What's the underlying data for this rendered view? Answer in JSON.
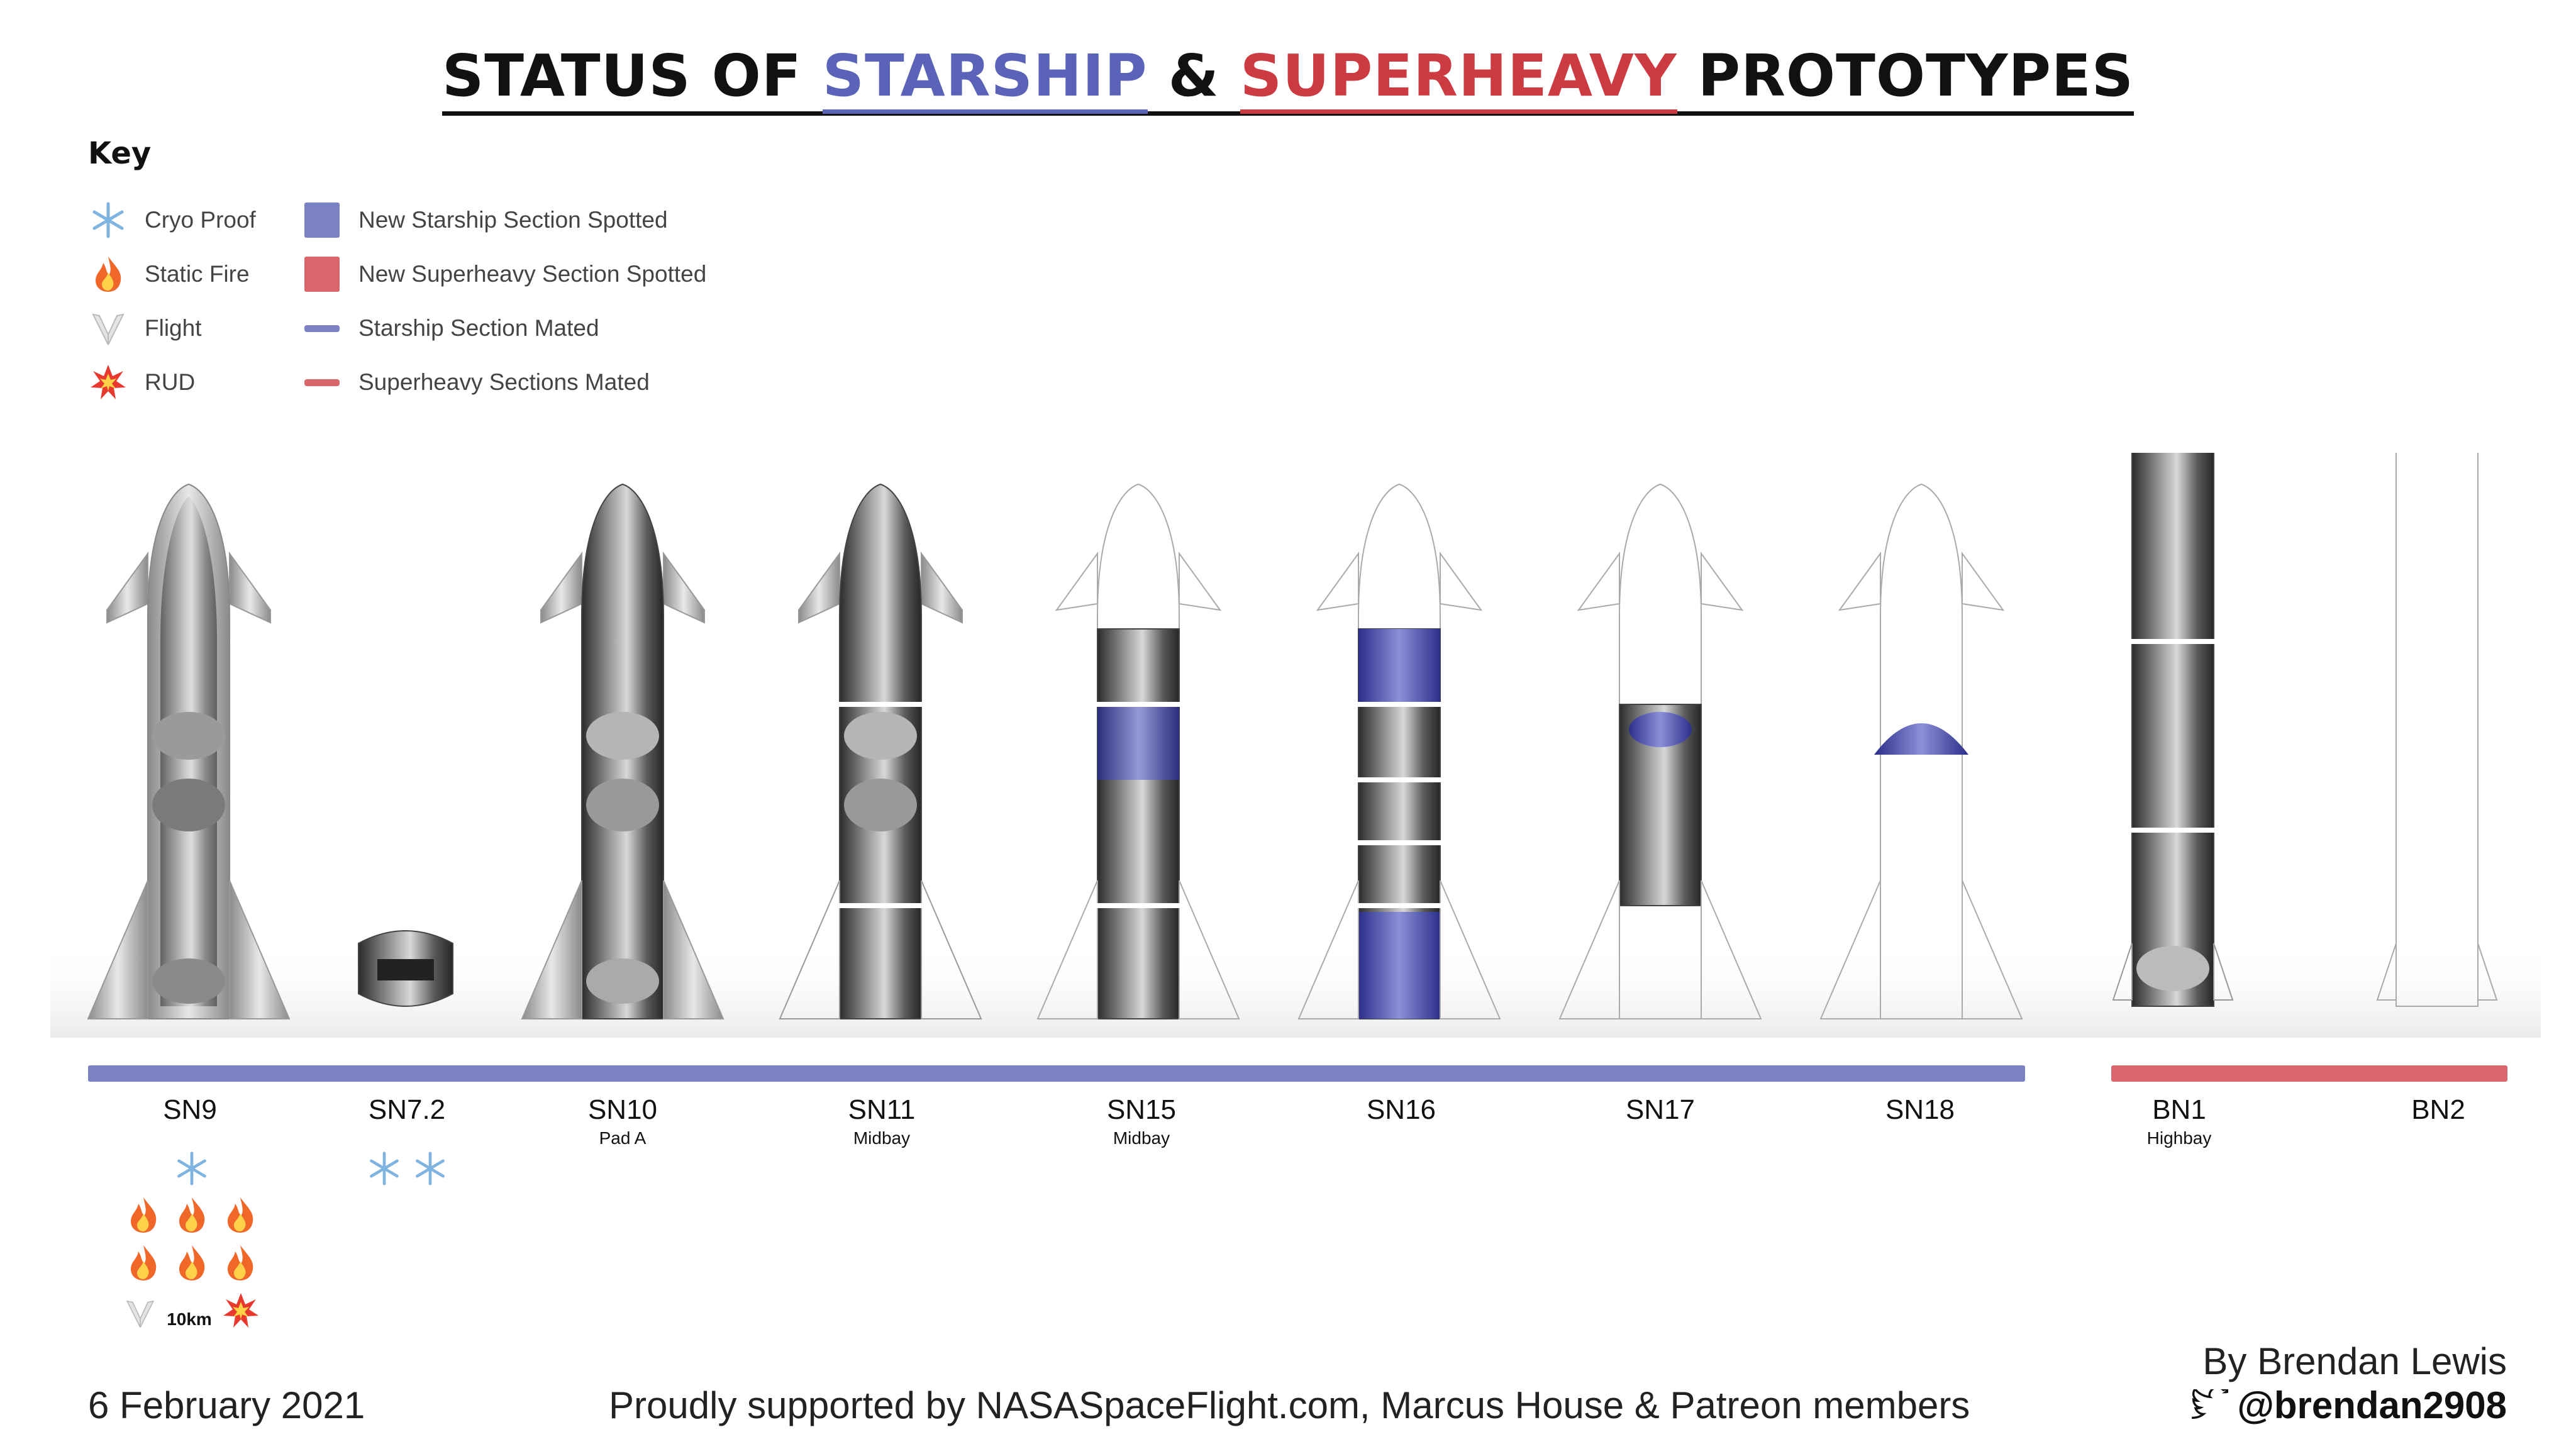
{
  "title": {
    "prefix": "STATUS OF ",
    "starship": "STARSHIP",
    "amp": " & ",
    "superheavy": "SUPERHEAVY",
    "suffix": " PROTOTYPES"
  },
  "colors": {
    "starship": "#5a63b8",
    "superheavy": "#cc3b42",
    "starship_bar": "#7b82c4",
    "superheavy_bar": "#d9666a"
  },
  "key": {
    "title": "Key",
    "items": [
      {
        "icon": "snowflake-icon",
        "label": "Cryo Proof"
      },
      {
        "icon": "fire-icon",
        "label": "Static Fire"
      },
      {
        "icon": "wings-icon",
        "label": "Flight"
      },
      {
        "icon": "explosion-icon",
        "label": "RUD"
      },
      {
        "icon": "blue-square",
        "label": "New Starship Section Spotted"
      },
      {
        "icon": "red-square",
        "label": "New Superheavy Section Spotted"
      },
      {
        "icon": "blue-line",
        "label": "Starship Section Mated"
      },
      {
        "icon": "red-line",
        "label": "Superheavy Sections Mated"
      }
    ]
  },
  "vehicles": [
    {
      "name": "SN9",
      "location": "",
      "icons": [
        "snowflake",
        "fire x6",
        "wings",
        "explosion"
      ],
      "flight_altitude": "10km"
    },
    {
      "name": "SN7.2",
      "location": "",
      "icons": [
        "snowflake x2"
      ]
    },
    {
      "name": "SN10",
      "location": "Pad A"
    },
    {
      "name": "SN11",
      "location": "Midbay"
    },
    {
      "name": "SN15",
      "location": "Midbay"
    },
    {
      "name": "SN16",
      "location": ""
    },
    {
      "name": "SN17",
      "location": ""
    },
    {
      "name": "SN18",
      "location": ""
    },
    {
      "name": "BN1",
      "location": "Highbay"
    },
    {
      "name": "BN2",
      "location": ""
    }
  ],
  "footer": {
    "date": "6 February 2021",
    "support": "Proudly supported by NASASpaceFlight.com, Marcus House & Patreon members",
    "author": "By Brendan Lewis",
    "handle": "@brendan2908"
  }
}
